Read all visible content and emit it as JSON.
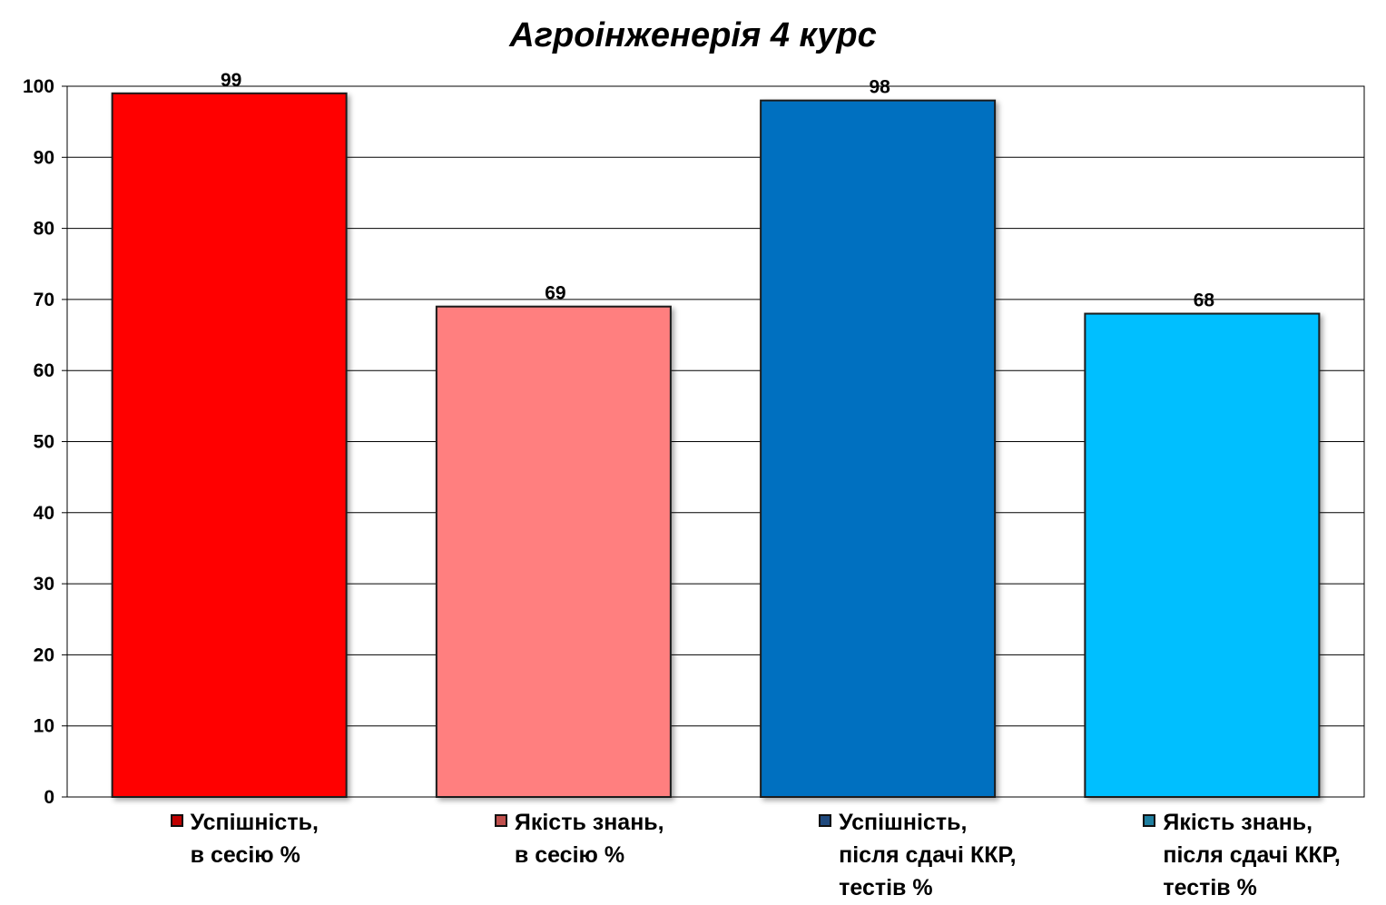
{
  "chart_data": {
    "type": "bar",
    "title": "Агроінженерія 4 курс",
    "categories": [
      "Успішність,\nв сесію %",
      "Якість знань,\nв сесію %",
      "Успішність,\nпісля сдачі ККР,\nтестів %",
      "Якість знань,\nпісля сдачі ККР,\nтестів %"
    ],
    "values": [
      99,
      69,
      98,
      68
    ],
    "colors": [
      "#ff0000",
      "#ff7f7f",
      "#0070c0",
      "#00bfff"
    ],
    "swatch_colors": [
      "#c00000",
      "#c0504d",
      "#1f497d",
      "#1f7fa0"
    ],
    "ylim": [
      0,
      100
    ],
    "yticks": [
      0,
      10,
      20,
      30,
      40,
      50,
      60,
      70,
      80,
      90,
      100
    ],
    "grid": true,
    "legend_placement": "bottom",
    "xlabel": "",
    "ylabel": ""
  }
}
